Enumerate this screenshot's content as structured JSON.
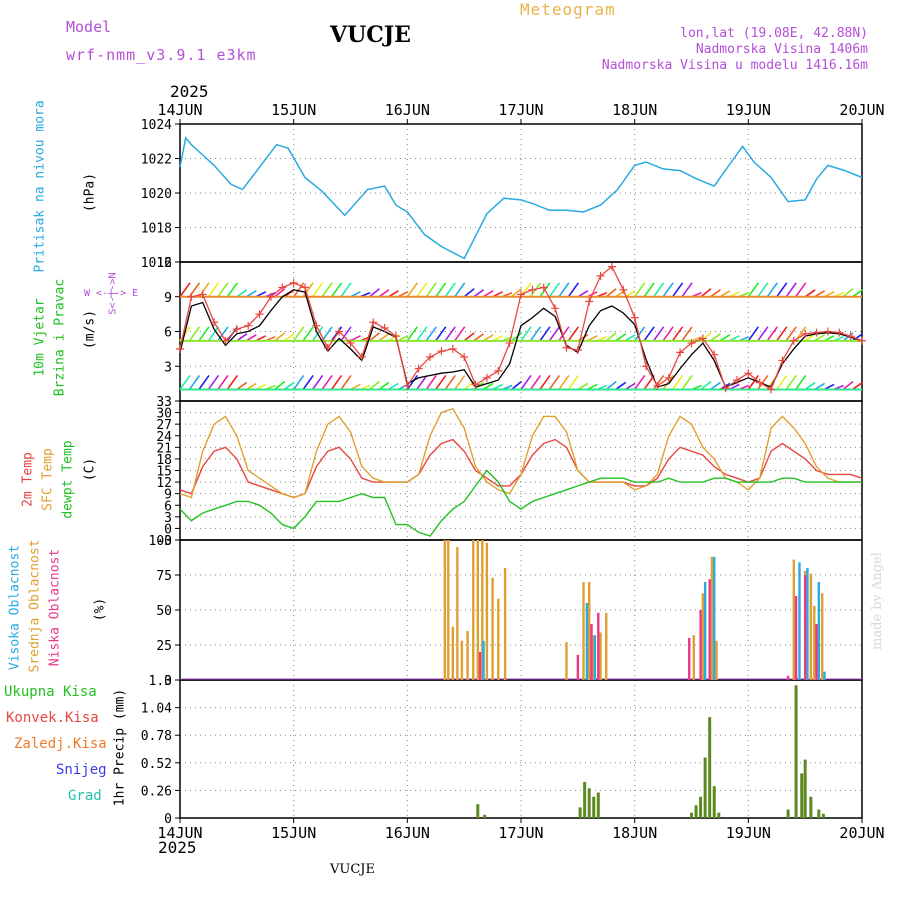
{
  "header": {
    "model_label": "Model",
    "model_name": "wrf-nmm_v3.9.1  e3km",
    "station": "VUCJE",
    "title": "Meteogram",
    "lonlat": "lon,lat (19.08E, 42.88N)",
    "altitude": "Nadmorska Visina 1406m",
    "model_altitude": "Nadmorska Visina u modelu 1416.16m",
    "year": "2025"
  },
  "footer": {
    "year": "2025",
    "station": "VUCJE",
    "credit": "made by Angel"
  },
  "x_axis": {
    "ticks": [
      "14JUN",
      "15JUN",
      "16JUN",
      "17JUN",
      "18JUN",
      "19JUN",
      "20JUN"
    ]
  },
  "colors": {
    "pressure": "#29aae1",
    "temp2m": "#e8463f",
    "sfc": "#e0a030",
    "dewpt": "#22c022",
    "purple": "#b44fd8",
    "high": "#29aae1",
    "mid": "#e0a030",
    "low": "#e83a8a",
    "total": "#22c022",
    "conv": "#e8463f",
    "strat": "#f07a2a",
    "snow": "#3a3ae8",
    "hail": "#22c0b0"
  },
  "labels": {
    "pressure": "Pritisak na nivou mora",
    "pressure_unit": "(hPa)",
    "wind1": "10m Vjetar",
    "wind2": "Brzina i Pravac",
    "wind_unit": "(m/s)",
    "compass": "W <-|-> E",
    "compass_ns": "S<-|->N",
    "t2m": "2m Temp",
    "tsfc": "SFC Temp",
    "tdew": "dewpt Temp",
    "temp_unit": "(C)",
    "cl_high": "Visoka Oblacnost",
    "cl_mid": "Srednja Oblacnost",
    "cl_low": "Niska Oblacnost",
    "cloud_unit": "(%)",
    "p_total": "Ukupna Kisa",
    "p_conv": "Konvek.Kisa",
    "p_strat": "Zaledj.Kisa",
    "p_snow": "Snijeg",
    "p_hail": "Grad",
    "precip_unit": "1hr Precip (mm)"
  },
  "chart_data": [
    {
      "type": "line",
      "title": "Pritisak na nivou mora",
      "ylabel": "hPa",
      "ylim": [
        1016,
        1024
      ],
      "yticks": [
        "1016",
        "1018",
        "1020",
        "1022",
        "1024"
      ],
      "x_days": [
        0,
        0.05,
        0.1,
        0.2,
        0.3,
        0.45,
        0.55,
        0.7,
        0.85,
        0.95,
        1.1,
        1.25,
        1.45,
        1.65,
        1.8,
        1.9,
        2.0,
        2.15,
        2.3,
        2.5,
        2.7,
        2.85,
        3.0,
        3.1,
        3.25,
        3.4,
        3.55,
        3.7,
        3.85,
        4.0,
        4.1,
        4.25,
        4.4,
        4.55,
        4.7,
        4.85,
        4.95,
        5.05,
        5.2,
        5.35,
        5.5,
        5.6,
        5.7,
        5.85,
        6.0
      ],
      "values": [
        1021.5,
        1023.2,
        1022.8,
        1022.2,
        1021.6,
        1020.5,
        1020.2,
        1021.5,
        1022.8,
        1022.6,
        1020.9,
        1020.1,
        1018.7,
        1020.2,
        1020.4,
        1019.3,
        1018.9,
        1017.6,
        1016.9,
        1016.2,
        1018.8,
        1019.7,
        1019.6,
        1019.4,
        1019.0,
        1019.0,
        1018.9,
        1019.3,
        1020.2,
        1021.6,
        1021.8,
        1021.4,
        1021.3,
        1020.8,
        1020.4,
        1021.8,
        1022.7,
        1021.8,
        1020.9,
        1019.5,
        1019.6,
        1020.8,
        1021.6,
        1021.3,
        1020.9
      ]
    },
    {
      "type": "line",
      "title": "10m Vjetar Brzina i Pravac",
      "ylabel": "m/s",
      "ylim": [
        0,
        12
      ],
      "yticks": [
        "3",
        "6",
        "9",
        "12"
      ],
      "series": [
        {
          "name": "wind speed",
          "color": "#000000",
          "x_days": [
            0,
            0.1,
            0.2,
            0.3,
            0.4,
            0.5,
            0.6,
            0.7,
            0.8,
            0.9,
            1.0,
            1.1,
            1.2,
            1.3,
            1.4,
            1.5,
            1.6,
            1.7,
            1.8,
            1.9,
            2.0,
            2.1,
            2.2,
            2.3,
            2.4,
            2.5,
            2.6,
            2.7,
            2.8,
            2.9,
            3.0,
            3.1,
            3.2,
            3.3,
            3.4,
            3.5,
            3.6,
            3.7,
            3.8,
            3.9,
            4.0,
            4.1,
            4.2,
            4.3,
            4.4,
            4.5,
            4.6,
            4.7,
            4.8,
            4.9,
            5.0,
            5.1,
            5.2,
            5.3,
            5.4,
            5.5,
            5.6,
            5.7,
            5.8,
            5.9,
            6.0
          ],
          "values": [
            4.2,
            8.2,
            8.5,
            6.2,
            4.8,
            5.8,
            6.0,
            6.5,
            7.8,
            9.0,
            9.6,
            9.4,
            6.0,
            4.3,
            5.4,
            4.5,
            3.5,
            6.4,
            6.0,
            5.5,
            1.5,
            2.0,
            2.2,
            2.4,
            2.5,
            2.7,
            1.2,
            1.5,
            1.8,
            3.2,
            6.5,
            7.2,
            8.0,
            7.3,
            4.8,
            4.2,
            6.5,
            7.8,
            8.2,
            7.6,
            6.6,
            3.6,
            1.2,
            1.5,
            2.8,
            4.0,
            5.0,
            3.5,
            1.2,
            1.6,
            2.0,
            1.6,
            1.2,
            3.2,
            4.5,
            5.6,
            5.8,
            5.9,
            5.8,
            5.5,
            5.2
          ]
        },
        {
          "name": "gust",
          "color": "#e8463f",
          "x_days": [
            0,
            0.1,
            0.2,
            0.3,
            0.4,
            0.5,
            0.6,
            0.7,
            0.8,
            0.9,
            1.0,
            1.1,
            1.2,
            1.3,
            1.4,
            1.5,
            1.6,
            1.7,
            1.8,
            1.9,
            2.0,
            2.1,
            2.2,
            2.3,
            2.4,
            2.5,
            2.6,
            2.7,
            2.8,
            2.9,
            3.0,
            3.1,
            3.2,
            3.3,
            3.4,
            3.5,
            3.6,
            3.7,
            3.8,
            3.9,
            4.0,
            4.1,
            4.2,
            4.3,
            4.4,
            4.5,
            4.6,
            4.7,
            4.8,
            4.9,
            5.0,
            5.1,
            5.2,
            5.3,
            5.4,
            5.5,
            5.6,
            5.7,
            5.8,
            5.9,
            6.0
          ],
          "values": [
            4.5,
            9.0,
            9.2,
            6.8,
            5.2,
            6.2,
            6.5,
            7.5,
            9.0,
            9.8,
            10.2,
            9.8,
            6.5,
            4.6,
            6.0,
            5.0,
            3.8,
            6.8,
            6.3,
            5.6,
            1.3,
            2.8,
            3.8,
            4.3,
            4.5,
            3.8,
            1.4,
            2.0,
            2.6,
            5.0,
            9.2,
            9.6,
            9.8,
            8.0,
            4.6,
            4.4,
            8.6,
            10.8,
            11.6,
            9.6,
            7.2,
            3.0,
            1.3,
            2.0,
            4.2,
            5.0,
            5.4,
            4.0,
            1.1,
            1.8,
            2.4,
            1.6,
            1.0,
            3.5,
            5.2,
            5.8,
            5.9,
            6.0,
            5.9,
            5.6,
            5.2
          ]
        }
      ]
    },
    {
      "type": "line",
      "title": "Temp",
      "ylabel": "C",
      "ylim": [
        -3,
        33
      ],
      "yticks": [
        "-3",
        "0",
        "3",
        "6",
        "9",
        "12",
        "15",
        "18",
        "21",
        "24",
        "27",
        "30",
        "33"
      ],
      "x_days": [
        0,
        0.1,
        0.2,
        0.3,
        0.4,
        0.5,
        0.6,
        0.7,
        0.8,
        0.9,
        1.0,
        1.1,
        1.2,
        1.3,
        1.4,
        1.5,
        1.6,
        1.7,
        1.8,
        1.9,
        2.0,
        2.1,
        2.2,
        2.3,
        2.4,
        2.5,
        2.6,
        2.7,
        2.8,
        2.9,
        3.0,
        3.1,
        3.2,
        3.3,
        3.4,
        3.5,
        3.6,
        3.7,
        3.8,
        3.9,
        4.0,
        4.1,
        4.2,
        4.3,
        4.4,
        4.5,
        4.6,
        4.7,
        4.8,
        4.9,
        5.0,
        5.1,
        5.2,
        5.3,
        5.4,
        5.5,
        5.6,
        5.7,
        5.8,
        5.9,
        6.0
      ],
      "series": [
        {
          "name": "2m Temp",
          "color": "#e8463f",
          "values": [
            10,
            9,
            16,
            20,
            21,
            18,
            12,
            11,
            10,
            9,
            8,
            9,
            16,
            20,
            21,
            18,
            13,
            12,
            12,
            12,
            12,
            14,
            19,
            22,
            23,
            20,
            15,
            13,
            11,
            11,
            14,
            19,
            22,
            23,
            21,
            15,
            12,
            12,
            12,
            12,
            11,
            11,
            13,
            18,
            21,
            20,
            19,
            16,
            14,
            13,
            12,
            13,
            20,
            22,
            20,
            18,
            15,
            14,
            14,
            14,
            13
          ]
        },
        {
          "name": "SFC Temp",
          "color": "#e0a030",
          "values": [
            9,
            8,
            20,
            27,
            29,
            24,
            15,
            13,
            11,
            9,
            8,
            9,
            20,
            27,
            29,
            25,
            16,
            13,
            12,
            12,
            12,
            14,
            24,
            30,
            31,
            26,
            16,
            12,
            10,
            9,
            14,
            24,
            29,
            29,
            25,
            15,
            12,
            12,
            12,
            12,
            10,
            11,
            14,
            24,
            29,
            27,
            21,
            18,
            13,
            12,
            10,
            13,
            26,
            29,
            26,
            22,
            16,
            13,
            12,
            12,
            12
          ]
        },
        {
          "name": "dewpt Temp",
          "color": "#22c022",
          "values": [
            5,
            2,
            4,
            5,
            6,
            7,
            7,
            6,
            4,
            1,
            0,
            3,
            7,
            7,
            7,
            8,
            9,
            8,
            8,
            1,
            1,
            -1,
            -2,
            2,
            5,
            7,
            11,
            15,
            12,
            7,
            5,
            7,
            8,
            9,
            10,
            11,
            12,
            13,
            13,
            13,
            12,
            12,
            12,
            13,
            12,
            12,
            12,
            13,
            13,
            12,
            12,
            12,
            12,
            13,
            13,
            12,
            12,
            12,
            12,
            12,
            12
          ]
        }
      ]
    },
    {
      "type": "bar",
      "title": "Oblacnost",
      "ylabel": "%",
      "ylim": [
        0,
        100
      ],
      "yticks": [
        "0",
        "25",
        "50",
        "75",
        "100"
      ],
      "series": [
        {
          "name": "Srednja Oblacnost",
          "color": "#e0a030",
          "x_days": [
            2.33,
            2.36,
            2.4,
            2.44,
            2.48,
            2.53,
            2.58,
            2.62,
            2.66,
            2.7,
            2.75,
            2.8,
            2.86,
            3.4,
            3.55,
            3.6,
            3.63,
            3.7,
            3.75,
            4.52,
            4.6,
            4.68,
            4.72,
            5.4,
            5.5,
            5.55,
            5.58,
            5.65
          ],
          "values": [
            100,
            100,
            38,
            95,
            28,
            35,
            100,
            100,
            100,
            98,
            73,
            58,
            80,
            27,
            70,
            70,
            32,
            34,
            48,
            32,
            62,
            88,
            28,
            86,
            78,
            76,
            53,
            62
          ]
        },
        {
          "name": "Visoka Oblacnost",
          "color": "#29aae1",
          "x_days": [
            2.67,
            3.58,
            3.65,
            4.62,
            4.7,
            5.45,
            5.52,
            5.62,
            5.67
          ],
          "values": [
            28,
            55,
            32,
            70,
            88,
            84,
            80,
            70,
            6
          ]
        },
        {
          "name": "Niska Oblacnost",
          "color": "#e83a8a",
          "x_days": [
            2.64,
            3.5,
            3.62,
            3.68,
            4.48,
            4.58,
            4.66,
            5.35,
            5.42,
            5.5,
            5.6
          ],
          "values": [
            20,
            18,
            40,
            48,
            30,
            50,
            72,
            3,
            60,
            75,
            40
          ]
        }
      ]
    },
    {
      "type": "bar",
      "title": "1hr Precip",
      "ylabel": "mm",
      "ylim": [
        0,
        1.3
      ],
      "yticks": [
        "0",
        "0.26",
        "0.52",
        "0.78",
        "1.04",
        "1.3"
      ],
      "series": [
        {
          "name": "Ukupna Kisa",
          "color": "#5a8a20",
          "x_days": [
            2.62,
            2.68,
            3.52,
            3.56,
            3.6,
            3.64,
            3.68,
            4.5,
            4.54,
            4.58,
            4.62,
            4.66,
            4.7,
            4.74,
            5.35,
            5.42,
            5.47,
            5.5,
            5.55,
            5.62,
            5.66
          ],
          "values": [
            0.13,
            0.03,
            0.1,
            0.34,
            0.28,
            0.2,
            0.24,
            0.05,
            0.12,
            0.2,
            0.57,
            0.95,
            0.3,
            0.05,
            0.08,
            1.25,
            0.42,
            0.55,
            0.2,
            0.08,
            0.04
          ]
        }
      ]
    }
  ]
}
